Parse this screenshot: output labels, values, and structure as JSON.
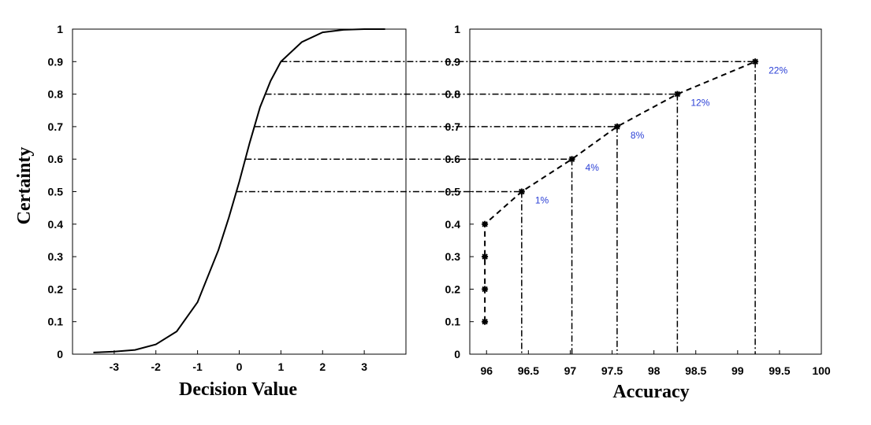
{
  "chart_data": [
    {
      "type": "line",
      "xlabel": "Decision Value",
      "ylabel": "Certainty",
      "xlim": [
        -4,
        4
      ],
      "ylim": [
        0,
        1
      ],
      "xticks": [
        "-3",
        "-2",
        "-1",
        "0",
        "1",
        "2",
        "3"
      ],
      "yticks": [
        "0",
        "0.1",
        "0.2",
        "0.3",
        "0.4",
        "0.5",
        "0.6",
        "0.7",
        "0.8",
        "0.9",
        "1"
      ],
      "series": [
        {
          "x": [
            -3.5,
            -3.0,
            -2.5,
            -2.0,
            -1.5,
            -1.0,
            -0.5,
            -0.25,
            0,
            0.25,
            0.5,
            0.75,
            1.0,
            1.5,
            2.0,
            2.5,
            3.0,
            3.5
          ],
          "y": [
            0.005,
            0.008,
            0.013,
            0.03,
            0.07,
            0.16,
            0.32,
            0.42,
            0.53,
            0.65,
            0.76,
            0.84,
            0.9,
            0.96,
            0.99,
            0.998,
            1.0,
            1.0
          ]
        }
      ]
    },
    {
      "type": "line",
      "xlabel": "Accuracy",
      "xlim": [
        95.8,
        100
      ],
      "ylim": [
        0,
        1
      ],
      "xticks": [
        "96",
        "96.5",
        "97",
        "97.5",
        "98",
        "98.5",
        "99",
        "99.5",
        "100"
      ],
      "yticks": [
        "0",
        "0.1",
        "0.2",
        "0.3",
        "0.4",
        "0.5",
        "0.6",
        "0.7",
        "0.8",
        "0.9",
        "1"
      ],
      "series": [
        {
          "x": [
            95.98,
            95.98,
            95.98,
            95.98,
            96.42,
            97.02,
            97.56,
            98.28,
            99.21
          ],
          "y": [
            0.1,
            0.2,
            0.3,
            0.4,
            0.5,
            0.6,
            0.7,
            0.8,
            0.9
          ]
        }
      ],
      "annotations": [
        {
          "x": 96.42,
          "y": 0.5,
          "text": "1%"
        },
        {
          "x": 97.02,
          "y": 0.6,
          "text": "4%"
        },
        {
          "x": 97.56,
          "y": 0.7,
          "text": "8%"
        },
        {
          "x": 98.28,
          "y": 0.8,
          "text": "12%"
        },
        {
          "x": 99.21,
          "y": 0.9,
          "text": "22%"
        }
      ],
      "connector_levels": [
        0.5,
        0.6,
        0.7,
        0.8,
        0.9
      ]
    }
  ],
  "colors": {
    "line": "#000000",
    "annotation": "#2a3fd6"
  }
}
